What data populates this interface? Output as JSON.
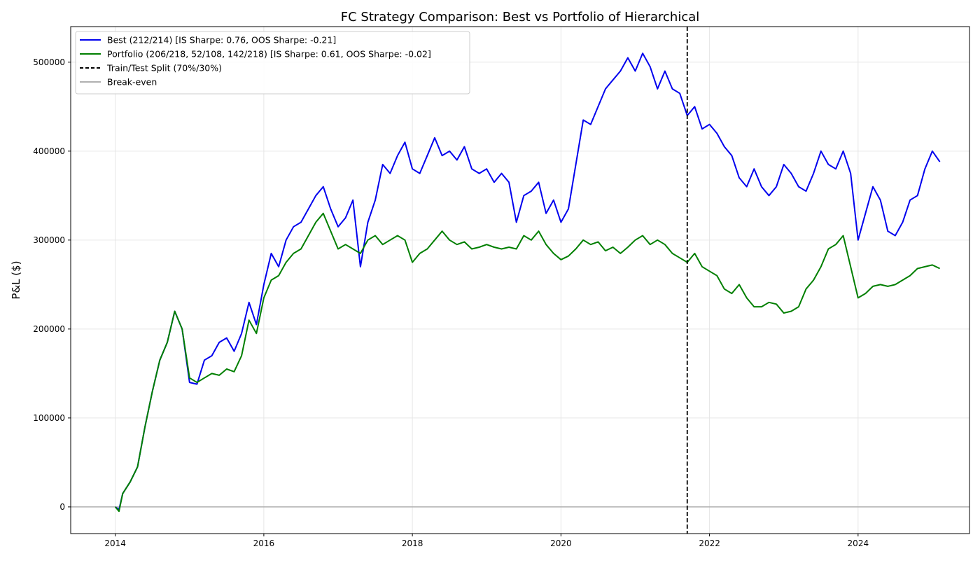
{
  "chart_data": {
    "type": "line",
    "title": "FC Strategy Comparison: Best vs Portfolio of Hierarchical",
    "xlabel": "",
    "ylabel": "P&L ($)",
    "xlim": [
      2013.4,
      2025.5
    ],
    "ylim": [
      -30000,
      540000
    ],
    "x_ticks": [
      2014,
      2016,
      2018,
      2020,
      2022,
      2024
    ],
    "y_ticks": [
      0,
      100000,
      200000,
      300000,
      400000,
      500000
    ],
    "grid": true,
    "legend_position": "top-left",
    "split": {
      "x": 2021.7,
      "label": "Train/Test Split (70%/30%)",
      "color": "#000000"
    },
    "breakeven": {
      "y": 0,
      "label": "Break-even",
      "color": "#b0b0b0"
    },
    "series": [
      {
        "name": "Best (212/214) [IS Sharpe: 0.76, OOS Sharpe: -0.21]",
        "color": "#0000ee",
        "points": [
          [
            2014.0,
            0
          ],
          [
            2014.05,
            -3000
          ],
          [
            2014.1,
            15000
          ],
          [
            2014.2,
            28000
          ],
          [
            2014.3,
            45000
          ],
          [
            2014.4,
            90000
          ],
          [
            2014.5,
            130000
          ],
          [
            2014.6,
            165000
          ],
          [
            2014.7,
            185000
          ],
          [
            2014.8,
            220000
          ],
          [
            2014.9,
            200000
          ],
          [
            2015.0,
            140000
          ],
          [
            2015.1,
            138000
          ],
          [
            2015.2,
            165000
          ],
          [
            2015.3,
            170000
          ],
          [
            2015.4,
            185000
          ],
          [
            2015.5,
            190000
          ],
          [
            2015.6,
            175000
          ],
          [
            2015.7,
            195000
          ],
          [
            2015.8,
            230000
          ],
          [
            2015.9,
            205000
          ],
          [
            2016.0,
            250000
          ],
          [
            2016.1,
            285000
          ],
          [
            2016.2,
            270000
          ],
          [
            2016.3,
            300000
          ],
          [
            2016.4,
            315000
          ],
          [
            2016.5,
            320000
          ],
          [
            2016.6,
            335000
          ],
          [
            2016.7,
            350000
          ],
          [
            2016.8,
            360000
          ],
          [
            2016.9,
            335000
          ],
          [
            2017.0,
            315000
          ],
          [
            2017.1,
            325000
          ],
          [
            2017.2,
            345000
          ],
          [
            2017.3,
            270000
          ],
          [
            2017.4,
            320000
          ],
          [
            2017.5,
            345000
          ],
          [
            2017.6,
            385000
          ],
          [
            2017.7,
            375000
          ],
          [
            2017.8,
            395000
          ],
          [
            2017.9,
            410000
          ],
          [
            2018.0,
            380000
          ],
          [
            2018.1,
            375000
          ],
          [
            2018.2,
            395000
          ],
          [
            2018.3,
            415000
          ],
          [
            2018.4,
            395000
          ],
          [
            2018.5,
            400000
          ],
          [
            2018.6,
            390000
          ],
          [
            2018.7,
            405000
          ],
          [
            2018.8,
            380000
          ],
          [
            2018.9,
            375000
          ],
          [
            2019.0,
            380000
          ],
          [
            2019.1,
            365000
          ],
          [
            2019.2,
            375000
          ],
          [
            2019.3,
            365000
          ],
          [
            2019.4,
            320000
          ],
          [
            2019.5,
            350000
          ],
          [
            2019.6,
            355000
          ],
          [
            2019.7,
            365000
          ],
          [
            2019.8,
            330000
          ],
          [
            2019.9,
            345000
          ],
          [
            2020.0,
            320000
          ],
          [
            2020.1,
            335000
          ],
          [
            2020.2,
            385000
          ],
          [
            2020.3,
            435000
          ],
          [
            2020.4,
            430000
          ],
          [
            2020.5,
            450000
          ],
          [
            2020.6,
            470000
          ],
          [
            2020.7,
            480000
          ],
          [
            2020.8,
            490000
          ],
          [
            2020.9,
            505000
          ],
          [
            2021.0,
            490000
          ],
          [
            2021.1,
            510000
          ],
          [
            2021.2,
            495000
          ],
          [
            2021.3,
            470000
          ],
          [
            2021.4,
            490000
          ],
          [
            2021.5,
            470000
          ],
          [
            2021.6,
            465000
          ],
          [
            2021.7,
            440000
          ],
          [
            2021.8,
            450000
          ],
          [
            2021.9,
            425000
          ],
          [
            2022.0,
            430000
          ],
          [
            2022.1,
            420000
          ],
          [
            2022.2,
            405000
          ],
          [
            2022.3,
            395000
          ],
          [
            2022.4,
            370000
          ],
          [
            2022.5,
            360000
          ],
          [
            2022.6,
            380000
          ],
          [
            2022.7,
            360000
          ],
          [
            2022.8,
            350000
          ],
          [
            2022.9,
            360000
          ],
          [
            2023.0,
            385000
          ],
          [
            2023.1,
            375000
          ],
          [
            2023.2,
            360000
          ],
          [
            2023.3,
            355000
          ],
          [
            2023.4,
            375000
          ],
          [
            2023.5,
            400000
          ],
          [
            2023.6,
            385000
          ],
          [
            2023.7,
            380000
          ],
          [
            2023.8,
            400000
          ],
          [
            2023.9,
            375000
          ],
          [
            2024.0,
            300000
          ],
          [
            2024.1,
            330000
          ],
          [
            2024.2,
            360000
          ],
          [
            2024.3,
            345000
          ],
          [
            2024.4,
            310000
          ],
          [
            2024.5,
            305000
          ],
          [
            2024.6,
            320000
          ],
          [
            2024.7,
            345000
          ],
          [
            2024.8,
            350000
          ],
          [
            2024.9,
            380000
          ],
          [
            2025.0,
            400000
          ],
          [
            2025.1,
            388000
          ]
        ]
      },
      {
        "name": "Portfolio (206/218, 52/108, 142/218) [IS Sharpe: 0.61, OOS Sharpe: -0.02]",
        "color": "#007f00",
        "points": [
          [
            2014.0,
            0
          ],
          [
            2014.05,
            -5000
          ],
          [
            2014.1,
            15000
          ],
          [
            2014.2,
            28000
          ],
          [
            2014.3,
            45000
          ],
          [
            2014.4,
            90000
          ],
          [
            2014.5,
            130000
          ],
          [
            2014.6,
            165000
          ],
          [
            2014.7,
            185000
          ],
          [
            2014.8,
            220000
          ],
          [
            2014.9,
            200000
          ],
          [
            2015.0,
            145000
          ],
          [
            2015.1,
            140000
          ],
          [
            2015.2,
            145000
          ],
          [
            2015.3,
            150000
          ],
          [
            2015.4,
            148000
          ],
          [
            2015.5,
            155000
          ],
          [
            2015.6,
            152000
          ],
          [
            2015.7,
            170000
          ],
          [
            2015.8,
            210000
          ],
          [
            2015.9,
            195000
          ],
          [
            2016.0,
            235000
          ],
          [
            2016.1,
            255000
          ],
          [
            2016.2,
            260000
          ],
          [
            2016.3,
            275000
          ],
          [
            2016.4,
            285000
          ],
          [
            2016.5,
            290000
          ],
          [
            2016.6,
            305000
          ],
          [
            2016.7,
            320000
          ],
          [
            2016.8,
            330000
          ],
          [
            2016.9,
            310000
          ],
          [
            2017.0,
            290000
          ],
          [
            2017.1,
            295000
          ],
          [
            2017.2,
            290000
          ],
          [
            2017.3,
            285000
          ],
          [
            2017.4,
            300000
          ],
          [
            2017.5,
            305000
          ],
          [
            2017.6,
            295000
          ],
          [
            2017.7,
            300000
          ],
          [
            2017.8,
            305000
          ],
          [
            2017.9,
            300000
          ],
          [
            2018.0,
            275000
          ],
          [
            2018.1,
            285000
          ],
          [
            2018.2,
            290000
          ],
          [
            2018.3,
            300000
          ],
          [
            2018.4,
            310000
          ],
          [
            2018.5,
            300000
          ],
          [
            2018.6,
            295000
          ],
          [
            2018.7,
            298000
          ],
          [
            2018.8,
            290000
          ],
          [
            2018.9,
            292000
          ],
          [
            2019.0,
            295000
          ],
          [
            2019.1,
            292000
          ],
          [
            2019.2,
            290000
          ],
          [
            2019.3,
            292000
          ],
          [
            2019.4,
            290000
          ],
          [
            2019.5,
            305000
          ],
          [
            2019.6,
            300000
          ],
          [
            2019.7,
            310000
          ],
          [
            2019.8,
            295000
          ],
          [
            2019.9,
            285000
          ],
          [
            2020.0,
            278000
          ],
          [
            2020.1,
            282000
          ],
          [
            2020.2,
            290000
          ],
          [
            2020.3,
            300000
          ],
          [
            2020.4,
            295000
          ],
          [
            2020.5,
            298000
          ],
          [
            2020.6,
            288000
          ],
          [
            2020.7,
            292000
          ],
          [
            2020.8,
            285000
          ],
          [
            2020.9,
            292000
          ],
          [
            2021.0,
            300000
          ],
          [
            2021.1,
            305000
          ],
          [
            2021.2,
            295000
          ],
          [
            2021.3,
            300000
          ],
          [
            2021.4,
            295000
          ],
          [
            2021.5,
            285000
          ],
          [
            2021.6,
            280000
          ],
          [
            2021.7,
            275000
          ],
          [
            2021.8,
            285000
          ],
          [
            2021.9,
            270000
          ],
          [
            2022.0,
            265000
          ],
          [
            2022.1,
            260000
          ],
          [
            2022.2,
            245000
          ],
          [
            2022.3,
            240000
          ],
          [
            2022.4,
            250000
          ],
          [
            2022.5,
            235000
          ],
          [
            2022.6,
            225000
          ],
          [
            2022.7,
            225000
          ],
          [
            2022.8,
            230000
          ],
          [
            2022.9,
            228000
          ],
          [
            2023.0,
            218000
          ],
          [
            2023.1,
            220000
          ],
          [
            2023.2,
            225000
          ],
          [
            2023.3,
            245000
          ],
          [
            2023.4,
            255000
          ],
          [
            2023.5,
            270000
          ],
          [
            2023.6,
            290000
          ],
          [
            2023.7,
            295000
          ],
          [
            2023.8,
            305000
          ],
          [
            2023.9,
            270000
          ],
          [
            2024.0,
            235000
          ],
          [
            2024.1,
            240000
          ],
          [
            2024.2,
            248000
          ],
          [
            2024.3,
            250000
          ],
          [
            2024.4,
            248000
          ],
          [
            2024.5,
            250000
          ],
          [
            2024.6,
            255000
          ],
          [
            2024.7,
            260000
          ],
          [
            2024.8,
            268000
          ],
          [
            2024.9,
            270000
          ],
          [
            2025.0,
            272000
          ],
          [
            2025.1,
            268000
          ]
        ]
      }
    ]
  }
}
